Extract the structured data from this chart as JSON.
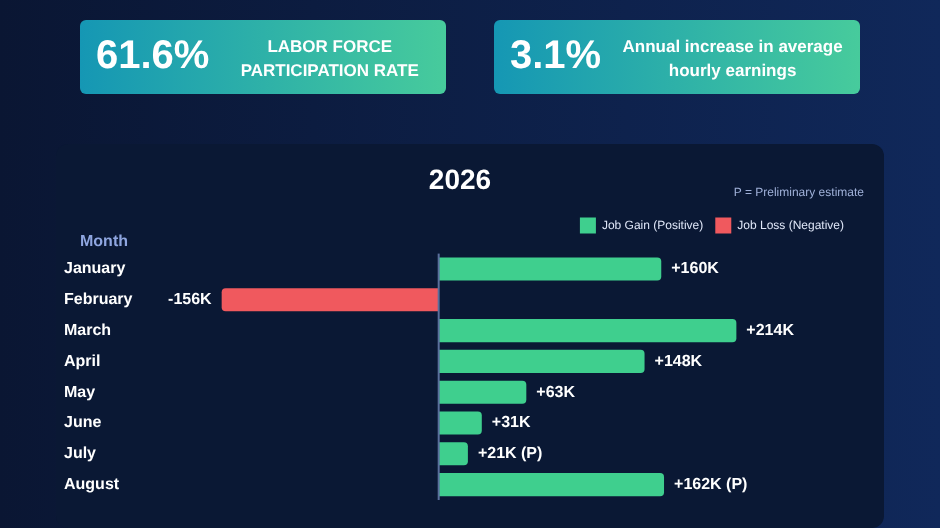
{
  "chart_data": {
    "type": "bar",
    "orientation": "horizontal",
    "stacked": true,
    "title": "2026",
    "ylabel": "Month",
    "categories": [
      "January",
      "February",
      "March",
      "April",
      "May",
      "June",
      "July",
      "August"
    ],
    "series": [
      {
        "name": "Job Gain (Positive)",
        "color": "#3fcf8e",
        "values": [
          160,
          null,
          214,
          148,
          63,
          31,
          21,
          162
        ],
        "value_labels": [
          "+160K",
          null,
          "+214K",
          "+148K",
          "+63K",
          "+31K",
          "+21K (P)",
          "+162K (P)"
        ]
      },
      {
        "name": "Job Loss (Negative)",
        "color": "#f0595e",
        "values": [
          null,
          -156,
          null,
          null,
          null,
          null,
          null,
          null
        ],
        "value_labels": [
          null,
          "-156K",
          null,
          null,
          null,
          null,
          null,
          null
        ]
      }
    ],
    "ref_lines": [
      {
        "axis": "x",
        "value": 0
      }
    ],
    "tick_labels": "y",
    "legend": "top right",
    "annotations": [
      "61.6%",
      "LABOR FORCE PARTICIPATION RATE",
      "3.1%",
      "Annual increase in average hourly earnings",
      "P = Preliminary estimate"
    ]
  }
}
